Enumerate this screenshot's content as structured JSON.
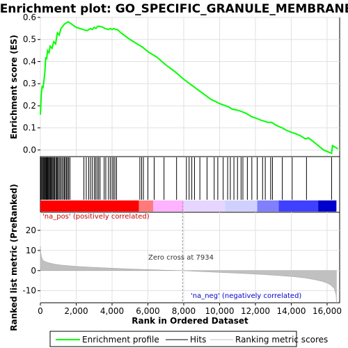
{
  "chart_data": {
    "type": "line",
    "title": "Enrichment plot: GO_SPECIFIC_GRANULE_MEMBRANE",
    "top_panel": {
      "ylabel": "Enrichment score (ES)",
      "ylim": [
        -0.03,
        0.6
      ],
      "yticks": [
        0.0,
        0.1,
        0.2,
        0.3,
        0.4,
        0.5,
        0.6
      ],
      "grid": true,
      "series": [
        {
          "name": "Enrichment profile",
          "color": "#00ff00",
          "x": [
            0,
            50,
            100,
            150,
            250,
            300,
            350,
            400,
            480,
            550,
            650,
            750,
            850,
            950,
            1050,
            1150,
            1250,
            1350,
            1450,
            1550,
            1650,
            2000,
            2400,
            2600,
            2800,
            2900,
            3000,
            3100,
            3200,
            3300,
            3500,
            3600,
            3800,
            3900,
            4000,
            4100,
            4200,
            4300,
            4500,
            5000,
            5500,
            5700,
            6000,
            6500,
            7000,
            7500,
            8000,
            8500,
            9000,
            9500,
            10000,
            10500,
            10700,
            11000,
            11200,
            11500,
            11800,
            12000,
            12300,
            12500,
            12700,
            12900,
            13200,
            13500,
            13700,
            14000,
            14200,
            14500,
            14800,
            14950,
            15200,
            15500,
            15800,
            16100,
            16250,
            16300,
            16600
          ],
          "y": [
            0.16,
            0.25,
            0.29,
            0.28,
            0.35,
            0.42,
            0.41,
            0.45,
            0.44,
            0.47,
            0.46,
            0.49,
            0.48,
            0.53,
            0.52,
            0.55,
            0.56,
            0.57,
            0.575,
            0.58,
            0.575,
            0.555,
            0.545,
            0.54,
            0.55,
            0.545,
            0.555,
            0.55,
            0.56,
            0.56,
            0.555,
            0.55,
            0.545,
            0.55,
            0.545,
            0.55,
            0.545,
            0.545,
            0.53,
            0.5,
            0.475,
            0.465,
            0.445,
            0.42,
            0.385,
            0.355,
            0.32,
            0.29,
            0.26,
            0.23,
            0.21,
            0.195,
            0.185,
            0.18,
            0.175,
            0.165,
            0.15,
            0.145,
            0.135,
            0.13,
            0.125,
            0.125,
            0.11,
            0.1,
            0.09,
            0.08,
            0.075,
            0.065,
            0.05,
            0.055,
            0.04,
            0.02,
            0.0,
            -0.01,
            -0.015,
            0.02,
            0.005
          ]
        }
      ]
    },
    "hits": [
      30,
      80,
      120,
      170,
      210,
      260,
      300,
      330,
      360,
      400,
      430,
      470,
      520,
      560,
      610,
      650,
      700,
      750,
      800,
      860,
      910,
      960,
      1010,
      1080,
      1140,
      1210,
      1280,
      1340,
      1400,
      1460,
      1520,
      1580,
      1650,
      2430,
      2560,
      2700,
      2800,
      2900,
      3010,
      3090,
      3170,
      3250,
      3330,
      3560,
      3650,
      3800,
      3900,
      4000,
      4080,
      4160,
      4250,
      5550,
      5650,
      5750,
      6000,
      6350,
      6900,
      7600,
      8150,
      8300,
      8450,
      8600,
      8900,
      9300,
      9700,
      9900,
      10200,
      10450,
      10600,
      10800,
      11000,
      11200,
      11300,
      11550,
      11800,
      12100,
      12400,
      12550,
      12850,
      12950,
      13500,
      14050,
      14850,
      16250
    ],
    "rank_bar_colors": [
      "#ff0000",
      "#ff7b7b",
      "#ffb2ff",
      "#e6d6ff",
      "#d0d0ff",
      "#8080ff",
      "#4040ff",
      "#0000cc"
    ],
    "bottom_panel": {
      "ylabel": "Ranked list metric (PreRanked)",
      "ylim": [
        -16,
        29
      ],
      "yticks": [
        -10,
        0,
        10,
        20
      ],
      "grid": true,
      "metric_x": [
        0,
        20,
        60,
        120,
        200,
        350,
        500,
        800,
        1200,
        2000,
        3000,
        4000,
        5000,
        6000,
        7000,
        7934,
        8500,
        9500,
        10500,
        11500,
        12500,
        13500,
        14200,
        14800,
        15300,
        15700,
        16000,
        16200,
        16400,
        16500,
        16520
      ],
      "metric_y": [
        12,
        9,
        7,
        5.5,
        4.8,
        4.2,
        3.8,
        3.2,
        2.7,
        2.1,
        1.6,
        1.2,
        0.8,
        0.5,
        0.2,
        0.0,
        -0.3,
        -0.7,
        -1.1,
        -1.5,
        -2.0,
        -2.6,
        -3.1,
        -3.7,
        -4.5,
        -5.3,
        -6.2,
        -7.2,
        -9.0,
        -12.0,
        -16.0
      ],
      "zero_cross": 7934,
      "zero_cross_label": "Zero cross at 7934",
      "pos_label": "'na_pos' (positively correlated)",
      "neg_label": "'na_neg' (negatively correlated)"
    },
    "xlabel": "Rank in Ordered Dataset",
    "xlim": [
      0,
      16700
    ],
    "xticks": [
      0,
      2000,
      4000,
      6000,
      8000,
      10000,
      12000,
      14000,
      16000
    ],
    "xtick_labels": [
      "0",
      "2,000",
      "4,000",
      "6,000",
      "8,000",
      "10,000",
      "12,000",
      "14,000",
      "16,000"
    ],
    "legend": {
      "placement": "bottom",
      "items": [
        {
          "label": "Enrichment profile",
          "color": "#00ff00"
        },
        {
          "label": "Hits",
          "color": "#000000"
        },
        {
          "label": "Ranking metric scores",
          "color": "#c0c0c0"
        }
      ]
    }
  }
}
